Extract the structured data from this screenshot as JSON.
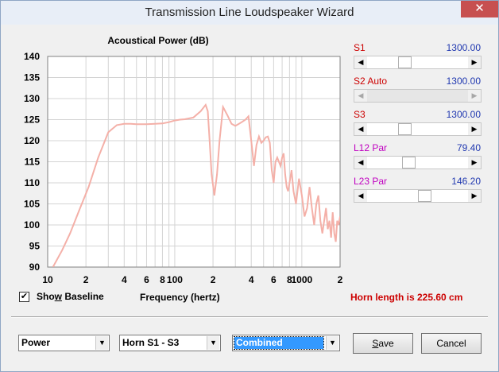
{
  "window": {
    "title": "Transmission Line Loudspeaker Wizard",
    "close_glyph": "✕"
  },
  "chart_data": {
    "type": "line",
    "title": "Acoustical Power (dB)",
    "xlabel": "Frequency (hertz)",
    "ylabel": "",
    "x_scale": "log",
    "xlim": [
      10,
      2000
    ],
    "ylim": [
      90,
      140
    ],
    "y_ticks": [
      "140",
      "135",
      "130",
      "125",
      "120",
      "115",
      "110",
      "105",
      "100",
      "95",
      "90"
    ],
    "y_tick_values": [
      140,
      135,
      130,
      125,
      120,
      115,
      110,
      105,
      100,
      95,
      90
    ],
    "x_ticks": [
      "10",
      "2",
      "4",
      "6",
      "8",
      "100",
      "2",
      "4",
      "6",
      "8",
      "1000",
      "2"
    ],
    "x_tick_values": [
      10,
      20,
      40,
      60,
      80,
      100,
      200,
      400,
      600,
      800,
      1000,
      2000
    ],
    "grid": true,
    "line_color": "#f4b0a8",
    "series": [
      {
        "x": [
          11,
          13,
          15,
          18,
          21,
          25,
          30,
          35,
          40,
          45,
          50,
          60,
          70,
          80,
          90,
          100,
          110,
          120,
          140,
          160,
          175,
          182,
          188,
          195,
          205,
          215,
          225,
          240,
          260,
          280,
          300,
          320,
          340,
          360,
          380,
          400,
          420,
          440,
          460,
          480,
          500,
          520,
          540,
          560,
          580,
          600,
          620,
          640,
          660,
          680,
          700,
          720,
          740,
          760,
          780,
          800,
          830,
          860,
          900,
          950,
          1000,
          1050,
          1100,
          1150,
          1200,
          1250,
          1300,
          1350,
          1400,
          1450,
          1500,
          1550,
          1600,
          1650,
          1700,
          1750,
          1800,
          1850,
          1900,
          1950,
          2000
        ],
        "values": [
          90,
          94,
          98,
          104,
          109,
          116,
          122,
          123.7,
          124,
          124,
          123.9,
          123.9,
          124,
          124.1,
          124.4,
          124.8,
          125,
          125.1,
          125.5,
          127,
          128.5,
          127,
          120,
          112,
          107,
          112,
          120,
          128,
          126,
          124,
          123.5,
          124,
          124.5,
          125,
          125.8,
          120,
          114,
          119,
          121,
          119.5,
          120,
          120.8,
          121,
          119.5,
          113,
          110,
          115,
          116,
          115,
          114,
          116,
          117,
          112,
          109,
          108,
          110,
          113,
          108,
          105,
          111,
          107,
          102,
          104,
          109,
          104,
          100,
          105,
          107,
          101,
          98,
          101,
          104,
          99,
          101,
          97,
          103,
          98,
          96,
          101,
          100,
          102
        ]
      }
    ]
  },
  "sliders": [
    {
      "id": "s1",
      "label": "S1",
      "label_color": "#cc0000",
      "suffix": "",
      "value": "1300.00",
      "position": 0.35,
      "disabled": false
    },
    {
      "id": "s2",
      "label": "S2",
      "label_color": "#cc0000",
      "suffix": "Auto",
      "value": "1300.00",
      "position": 0.0,
      "disabled": true
    },
    {
      "id": "s3",
      "label": "S3",
      "label_color": "#cc0000",
      "suffix": "",
      "value": "1300.00",
      "position": 0.35,
      "disabled": false
    },
    {
      "id": "l12",
      "label": "L12",
      "label_color": "#c000c0",
      "suffix": "Par",
      "value": "79.40",
      "position": 0.4,
      "disabled": false
    },
    {
      "id": "l23",
      "label": "L23",
      "label_color": "#c000c0",
      "suffix": "Par",
      "value": "146.20",
      "position": 0.58,
      "disabled": false
    }
  ],
  "options": {
    "show_baseline_label": "Show Baseline",
    "show_baseline_underline_char": "w",
    "show_baseline_checked": true,
    "check_glyph": "✔"
  },
  "horn_length": "Horn length is 225.60 cm",
  "bottom": {
    "combo1": "Power",
    "combo2": "Horn S1 - S3",
    "combo3": "Combined",
    "save_label": "Save",
    "cancel_label": "Cancel",
    "dropdown_glyph": "▼",
    "left_glyph": "◀",
    "right_glyph": "▶"
  }
}
